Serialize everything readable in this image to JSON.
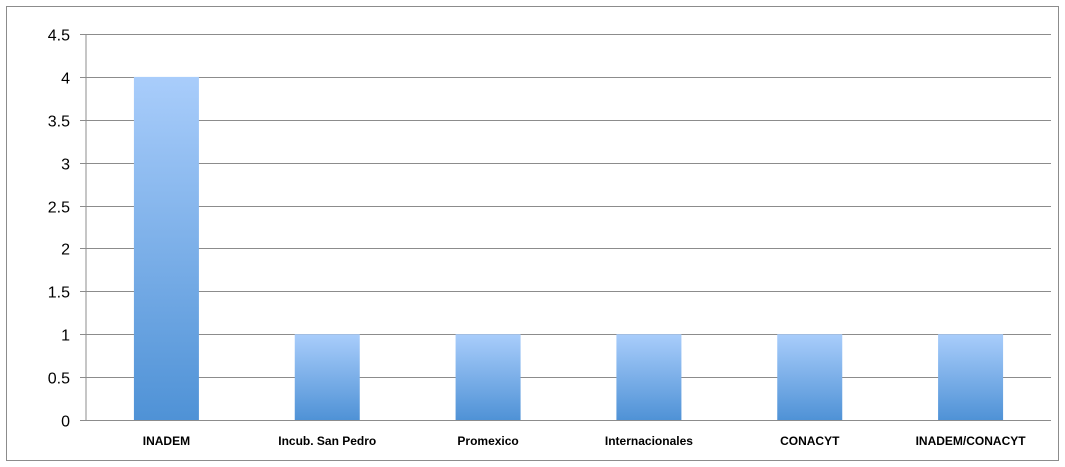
{
  "chart_data": {
    "type": "bar",
    "title": "",
    "xlabel": "",
    "ylabel": "",
    "categories": [
      "INADEM",
      "Incub. San Pedro",
      "Promexico",
      "Internacionales",
      "CONACYT",
      "INADEM/CONACYT"
    ],
    "values": [
      4,
      1,
      1,
      1,
      1,
      1
    ],
    "ylim": [
      0,
      4.5
    ],
    "yticks": [
      "0",
      "0.5",
      "1",
      "1.5",
      "2",
      "2.5",
      "3",
      "3.5",
      "4",
      "4.5"
    ],
    "grid": true,
    "legend": "none",
    "bar_color_top": "#a9cdfb",
    "bar_color_bottom": "#4f92d6",
    "gridline_color": "#8c8c8c"
  }
}
